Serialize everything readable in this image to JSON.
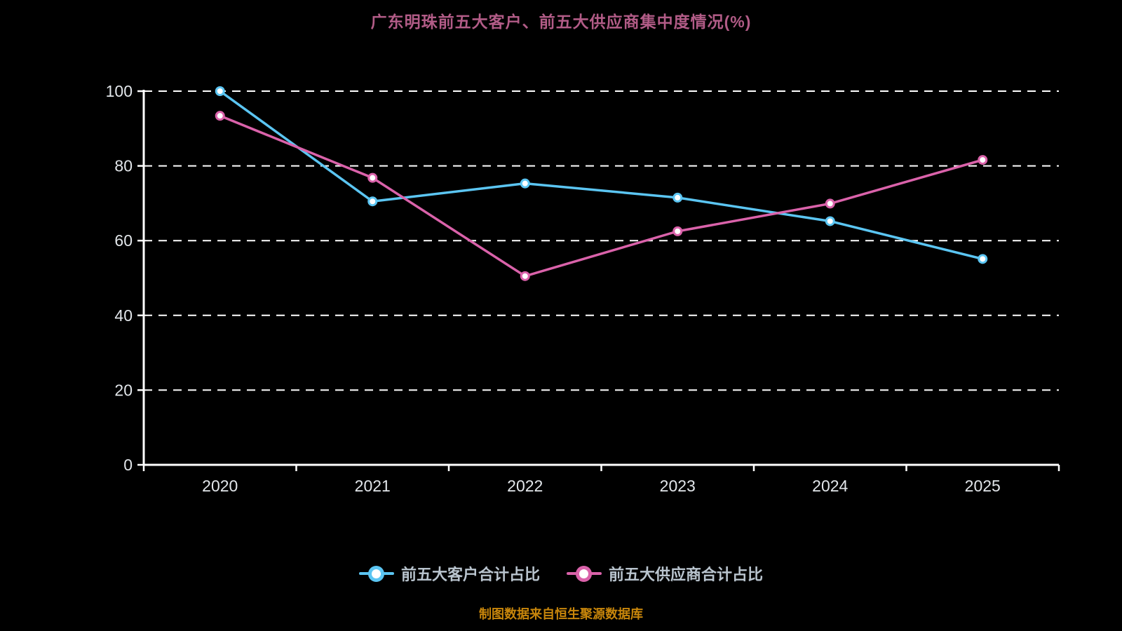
{
  "title": "广东明珠前五大客户、前五大供应商集中度情况(%)",
  "source_note": "制图数据来自恒生聚源数据库",
  "colors": {
    "background": "#000000",
    "title": "#b25c87",
    "axis": "#ffffff",
    "grid": "#ffffff",
    "tick_label": "#e2e6ea",
    "legend_text": "#b9c4ce",
    "source_text": "#c8860b",
    "marker_fill": "#ffffff"
  },
  "chart_data": {
    "type": "line",
    "title": "广东明珠前五大客户、前五大供应商集中度情况(%)",
    "categories": [
      "2020",
      "2021",
      "2022",
      "2023",
      "2024",
      "2025"
    ],
    "series": [
      {
        "name": "前五大客户合计占比",
        "color": "#5bc5f2",
        "values": [
          100,
          70.5,
          75.3,
          71.5,
          65.2,
          55.1
        ]
      },
      {
        "name": "前五大供应商合计占比",
        "color": "#da62aa",
        "values": [
          93.4,
          76.8,
          50.5,
          62.5,
          69.9,
          81.6
        ]
      }
    ],
    "xlabel": "",
    "ylabel": "",
    "ylim": [
      0,
      100
    ],
    "yticks": [
      0,
      20,
      40,
      60,
      80,
      100
    ],
    "grid": "horizontal-dashed",
    "legend_position": "bottom"
  }
}
